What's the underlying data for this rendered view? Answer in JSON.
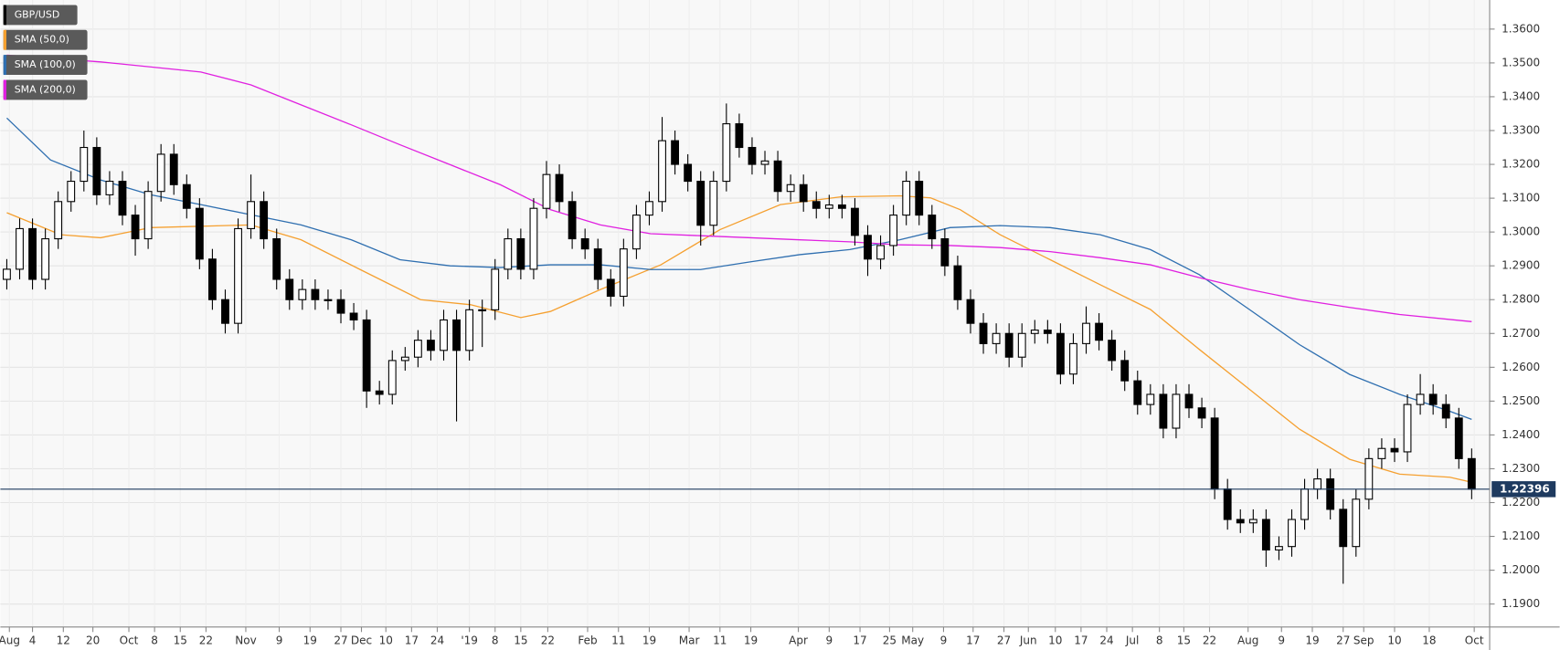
{
  "chart_data": {
    "type": "candlestick",
    "xlim": [
      -0.5,
      115.4
    ],
    "ylim": [
      1.1832,
      1.3686
    ],
    "grid": true,
    "yticks": [
      {
        "value": 1.19,
        "label": "1.1900"
      },
      {
        "value": 1.2,
        "label": "1.2000"
      },
      {
        "value": 1.21,
        "label": "1.2100"
      },
      {
        "value": 1.22,
        "label": "1.2200"
      },
      {
        "value": 1.23,
        "label": "1.2300"
      },
      {
        "value": 1.24,
        "label": "1.2400"
      },
      {
        "value": 1.25,
        "label": "1.2500"
      },
      {
        "value": 1.26,
        "label": "1.2600"
      },
      {
        "value": 1.27,
        "label": "1.2700"
      },
      {
        "value": 1.28,
        "label": "1.2800"
      },
      {
        "value": 1.29,
        "label": "1.2900"
      },
      {
        "value": 1.3,
        "label": "1.3000"
      },
      {
        "value": 1.31,
        "label": "1.3100"
      },
      {
        "value": 1.32,
        "label": "1.3200"
      },
      {
        "value": 1.33,
        "label": "1.3300"
      },
      {
        "value": 1.34,
        "label": "1.3400"
      },
      {
        "value": 1.35,
        "label": "1.3500"
      },
      {
        "value": 1.36,
        "label": "1.3600"
      }
    ],
    "xticks": [
      {
        "value": 0.2,
        "label": "Aug"
      },
      {
        "value": 2.0,
        "label": "4"
      },
      {
        "value": 4.4,
        "label": "12"
      },
      {
        "value": 6.7,
        "label": "20"
      },
      {
        "value": 9.5,
        "label": "Oct"
      },
      {
        "value": 11.5,
        "label": "8"
      },
      {
        "value": 13.5,
        "label": "15"
      },
      {
        "value": 15.5,
        "label": "22"
      },
      {
        "value": 18.6,
        "label": "Nov"
      },
      {
        "value": 21.2,
        "label": "9"
      },
      {
        "value": 23.6,
        "label": "19"
      },
      {
        "value": 26.0,
        "label": "27"
      },
      {
        "value": 27.6,
        "label": "Dec"
      },
      {
        "value": 29.5,
        "label": "10"
      },
      {
        "value": 31.5,
        "label": "17"
      },
      {
        "value": 33.5,
        "label": "24"
      },
      {
        "value": 36.0,
        "label": "'19"
      },
      {
        "value": 38.0,
        "label": "8"
      },
      {
        "value": 40.0,
        "label": "15"
      },
      {
        "value": 42.1,
        "label": "22"
      },
      {
        "value": 45.2,
        "label": "Feb"
      },
      {
        "value": 47.6,
        "label": "11"
      },
      {
        "value": 50.0,
        "label": "19"
      },
      {
        "value": 53.1,
        "label": "Mar"
      },
      {
        "value": 55.5,
        "label": "11"
      },
      {
        "value": 57.9,
        "label": "19"
      },
      {
        "value": 61.6,
        "label": "Apr"
      },
      {
        "value": 64.0,
        "label": "9"
      },
      {
        "value": 66.4,
        "label": "17"
      },
      {
        "value": 68.7,
        "label": "25"
      },
      {
        "value": 70.5,
        "label": "May"
      },
      {
        "value": 72.9,
        "label": "9"
      },
      {
        "value": 75.2,
        "label": "17"
      },
      {
        "value": 77.6,
        "label": "27"
      },
      {
        "value": 79.5,
        "label": "Jun"
      },
      {
        "value": 81.6,
        "label": "10"
      },
      {
        "value": 83.6,
        "label": "17"
      },
      {
        "value": 85.6,
        "label": "24"
      },
      {
        "value": 87.6,
        "label": "Jul"
      },
      {
        "value": 89.7,
        "label": "8"
      },
      {
        "value": 91.6,
        "label": "15"
      },
      {
        "value": 93.6,
        "label": "22"
      },
      {
        "value": 96.6,
        "label": "Aug"
      },
      {
        "value": 99.2,
        "label": "9"
      },
      {
        "value": 101.6,
        "label": "19"
      },
      {
        "value": 104.0,
        "label": "27"
      },
      {
        "value": 105.6,
        "label": "Sep"
      },
      {
        "value": 108.0,
        "label": "10"
      },
      {
        "value": 110.7,
        "label": "18"
      },
      {
        "value": 114.2,
        "label": "Oct"
      }
    ],
    "series": [
      {
        "name": "GBP/USD",
        "color": "#000000",
        "open": [
          1.286,
          1.289,
          1.301,
          1.286,
          1.298,
          1.309,
          1.315,
          1.325,
          1.311,
          1.315,
          1.305,
          1.298,
          1.312,
          1.323,
          1.314,
          1.307,
          1.292,
          1.28,
          1.273,
          1.301,
          1.309,
          1.298,
          1.286,
          1.28,
          1.283,
          1.28,
          1.28,
          1.276,
          1.274,
          1.253,
          1.252,
          1.262,
          1.263,
          1.268,
          1.265,
          1.274,
          1.265,
          1.277,
          1.277,
          1.289,
          1.298,
          1.289,
          1.307,
          1.317,
          1.309,
          1.298,
          1.295,
          1.286,
          1.281,
          1.295,
          1.305,
          1.309,
          1.327,
          1.32,
          1.315,
          1.302,
          1.315,
          1.332,
          1.325,
          1.32,
          1.321,
          1.312,
          1.314,
          1.309,
          1.307,
          1.308,
          1.307,
          1.299,
          1.292,
          1.296,
          1.305,
          1.315,
          1.305,
          1.298,
          1.29,
          1.28,
          1.273,
          1.267,
          1.27,
          1.263,
          1.27,
          1.271,
          1.27,
          1.258,
          1.267,
          1.273,
          1.268,
          1.262,
          1.256,
          1.249,
          1.252,
          1.242,
          1.252,
          1.248,
          1.245,
          1.224,
          1.215,
          1.214,
          1.215,
          1.206,
          1.207,
          1.215,
          1.224,
          1.227,
          1.218,
          1.207,
          1.221,
          1.233,
          1.236,
          1.235,
          1.249,
          1.252,
          1.249,
          1.245,
          1.233
        ],
        "high": [
          1.292,
          1.304,
          1.304,
          1.301,
          1.312,
          1.318,
          1.33,
          1.328,
          1.318,
          1.318,
          1.308,
          1.315,
          1.326,
          1.326,
          1.317,
          1.31,
          1.295,
          1.283,
          1.304,
          1.317,
          1.312,
          1.301,
          1.289,
          1.286,
          1.286,
          1.283,
          1.283,
          1.279,
          1.277,
          1.256,
          1.265,
          1.266,
          1.271,
          1.271,
          1.277,
          1.277,
          1.28,
          1.28,
          1.292,
          1.301,
          1.301,
          1.31,
          1.321,
          1.32,
          1.312,
          1.301,
          1.298,
          1.289,
          1.298,
          1.308,
          1.312,
          1.334,
          1.33,
          1.323,
          1.318,
          1.318,
          1.338,
          1.335,
          1.328,
          1.324,
          1.324,
          1.317,
          1.317,
          1.312,
          1.311,
          1.311,
          1.31,
          1.302,
          1.299,
          1.308,
          1.318,
          1.318,
          1.308,
          1.301,
          1.293,
          1.283,
          1.276,
          1.273,
          1.273,
          1.273,
          1.274,
          1.274,
          1.273,
          1.27,
          1.278,
          1.276,
          1.271,
          1.265,
          1.259,
          1.255,
          1.255,
          1.255,
          1.255,
          1.251,
          1.248,
          1.227,
          1.218,
          1.218,
          1.218,
          1.21,
          1.218,
          1.227,
          1.23,
          1.23,
          1.221,
          1.224,
          1.236,
          1.239,
          1.239,
          1.252,
          1.258,
          1.255,
          1.252,
          1.248,
          1.236
        ],
        "low": [
          1.283,
          1.286,
          1.283,
          1.283,
          1.295,
          1.306,
          1.312,
          1.308,
          1.308,
          1.302,
          1.293,
          1.295,
          1.309,
          1.311,
          1.304,
          1.289,
          1.277,
          1.27,
          1.27,
          1.298,
          1.295,
          1.283,
          1.277,
          1.277,
          1.277,
          1.277,
          1.273,
          1.271,
          1.248,
          1.249,
          1.249,
          1.259,
          1.26,
          1.262,
          1.262,
          1.244,
          1.262,
          1.266,
          1.274,
          1.286,
          1.286,
          1.286,
          1.304,
          1.306,
          1.295,
          1.292,
          1.283,
          1.278,
          1.278,
          1.292,
          1.302,
          1.306,
          1.317,
          1.312,
          1.296,
          1.299,
          1.312,
          1.322,
          1.317,
          1.317,
          1.309,
          1.309,
          1.306,
          1.304,
          1.304,
          1.304,
          1.296,
          1.287,
          1.289,
          1.293,
          1.302,
          1.302,
          1.295,
          1.287,
          1.277,
          1.27,
          1.264,
          1.264,
          1.26,
          1.26,
          1.267,
          1.267,
          1.255,
          1.255,
          1.264,
          1.265,
          1.259,
          1.253,
          1.246,
          1.246,
          1.239,
          1.239,
          1.245,
          1.242,
          1.221,
          1.212,
          1.211,
          1.211,
          1.201,
          1.203,
          1.204,
          1.212,
          1.221,
          1.215,
          1.196,
          1.204,
          1.218,
          1.23,
          1.232,
          1.232,
          1.246,
          1.246,
          1.242,
          1.23,
          1.221
        ],
        "close": [
          1.289,
          1.301,
          1.286,
          1.298,
          1.309,
          1.315,
          1.325,
          1.311,
          1.315,
          1.305,
          1.298,
          1.312,
          1.323,
          1.314,
          1.307,
          1.292,
          1.28,
          1.273,
          1.301,
          1.309,
          1.298,
          1.286,
          1.28,
          1.283,
          1.28,
          1.28,
          1.276,
          1.274,
          1.253,
          1.252,
          1.262,
          1.263,
          1.268,
          1.265,
          1.274,
          1.265,
          1.277,
          1.277,
          1.289,
          1.298,
          1.289,
          1.307,
          1.317,
          1.309,
          1.298,
          1.295,
          1.286,
          1.281,
          1.295,
          1.305,
          1.309,
          1.327,
          1.32,
          1.315,
          1.302,
          1.315,
          1.332,
          1.325,
          1.32,
          1.321,
          1.312,
          1.314,
          1.309,
          1.307,
          1.308,
          1.307,
          1.299,
          1.292,
          1.296,
          1.305,
          1.315,
          1.305,
          1.298,
          1.29,
          1.28,
          1.273,
          1.267,
          1.27,
          1.263,
          1.27,
          1.271,
          1.27,
          1.258,
          1.267,
          1.273,
          1.268,
          1.262,
          1.256,
          1.249,
          1.252,
          1.242,
          1.252,
          1.248,
          1.245,
          1.224,
          1.215,
          1.214,
          1.215,
          1.206,
          1.207,
          1.215,
          1.224,
          1.227,
          1.218,
          1.207,
          1.221,
          1.233,
          1.236,
          1.235,
          1.249,
          1.252,
          1.249,
          1.245,
          1.233,
          1.22396
        ]
      }
    ],
    "lines": [
      {
        "name": "SMA (50,0)",
        "color": "#f5a030",
        "x": [
          0,
          4.2,
          7.3,
          11.2,
          19,
          22.9,
          27.5,
          32.2,
          36.1,
          40,
          42.3,
          46.2,
          50.9,
          55.5,
          60.2,
          64.9,
          69.5,
          71.9,
          74.2,
          77.3,
          81.2,
          85.1,
          89,
          92.8,
          96.7,
          100.6,
          104.5,
          108.4,
          112.3,
          114
        ],
        "values": [
          1.3057,
          1.2992,
          1.2983,
          1.3013,
          1.3021,
          1.2977,
          1.2889,
          1.28,
          1.2785,
          1.2747,
          1.2765,
          1.283,
          1.2903,
          1.3007,
          1.3081,
          1.3104,
          1.3107,
          1.3101,
          1.3066,
          1.2992,
          1.2918,
          1.2844,
          1.2771,
          1.2653,
          1.2535,
          1.2417,
          1.2328,
          1.2284,
          1.2275,
          1.226
        ]
      },
      {
        "name": "SMA (100,0)",
        "color": "#2f6fb0",
        "x": [
          0,
          3.4,
          7.3,
          11.2,
          15.1,
          19,
          22.9,
          26.8,
          30.6,
          34.5,
          38.4,
          42.3,
          46.2,
          50.1,
          54,
          57.9,
          61.7,
          65.6,
          69.5,
          73.4,
          77.3,
          81.2,
          85.1,
          89,
          92.8,
          96.7,
          100.6,
          104.5,
          108.4,
          112.3,
          114
        ],
        "values": [
          1.3337,
          1.3213,
          1.3154,
          1.311,
          1.3081,
          1.3051,
          1.3021,
          1.2977,
          1.2918,
          1.29,
          1.2895,
          1.2903,
          1.2903,
          1.2889,
          1.2889,
          1.2912,
          1.2933,
          1.2948,
          1.2977,
          1.3013,
          1.3019,
          1.3013,
          1.2992,
          1.2948,
          1.2874,
          1.2771,
          1.2667,
          1.2579,
          1.252,
          1.247,
          1.2446
        ]
      },
      {
        "name": "SMA (200,0)",
        "color": "#e020e0",
        "x": [
          0,
          7.3,
          15.1,
          19,
          22.9,
          26.8,
          30.6,
          34.5,
          38.4,
          42.3,
          46.2,
          50.1,
          54,
          57.9,
          61.7,
          65.6,
          69.5,
          73.4,
          77.3,
          81.2,
          85.1,
          89,
          92.8,
          96.7,
          100.6,
          104.5,
          108.4,
          114
        ],
        "values": [
          1.3523,
          1.3503,
          1.3473,
          1.3435,
          1.3376,
          1.3317,
          1.3258,
          1.3199,
          1.314,
          1.3066,
          1.3021,
          1.2995,
          1.2989,
          1.2983,
          1.2977,
          1.2971,
          1.2962,
          1.296,
          1.2954,
          1.2942,
          1.2924,
          1.2903,
          1.2865,
          1.283,
          1.28,
          1.2777,
          1.2756,
          1.2735
        ]
      }
    ],
    "last_price": 1.22396,
    "last_price_color": "#1e3a5f"
  }
}
